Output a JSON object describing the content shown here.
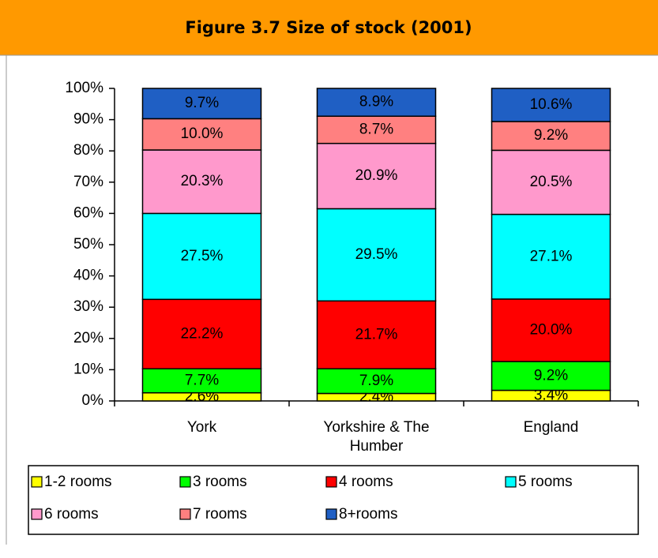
{
  "chart_data": {
    "type": "stacked_bar",
    "title": "Figure 3.7 Size of stock (2001)",
    "categories": [
      "York",
      "Yorkshire & The Humber",
      "England"
    ],
    "series": [
      {
        "name": "1-2 rooms",
        "color": "#ffff00",
        "values": [
          2.6,
          2.4,
          3.4
        ],
        "value_labels": [
          "2.6%",
          "2.4%",
          "3.4%"
        ]
      },
      {
        "name": "3 rooms",
        "color": "#00ff00",
        "values": [
          7.7,
          7.9,
          9.2
        ],
        "value_labels": [
          "7.7%",
          "7.9%",
          "9.2%"
        ]
      },
      {
        "name": "4 rooms",
        "color": "#ff0000",
        "values": [
          22.2,
          21.7,
          20.0
        ],
        "value_labels": [
          "22.2%",
          "21.7%",
          "20.0%"
        ]
      },
      {
        "name": "5 rooms",
        "color": "#00ffff",
        "values": [
          27.5,
          29.5,
          27.1
        ],
        "value_labels": [
          "27.5%",
          "29.5%",
          "27.1%"
        ]
      },
      {
        "name": "6 rooms",
        "color": "#ff99cc",
        "values": [
          20.3,
          20.9,
          20.5
        ],
        "value_labels": [
          "20.3%",
          "20.9%",
          "20.5%"
        ]
      },
      {
        "name": "7 rooms",
        "color": "#ff8080",
        "values": [
          10.0,
          8.7,
          9.2
        ],
        "value_labels": [
          "10.0%",
          "8.7%",
          "9.2%"
        ]
      },
      {
        "name": "8+rooms",
        "color": "#1f5fc4",
        "values": [
          9.7,
          8.9,
          10.6
        ],
        "value_labels": [
          "9.7%",
          "8.9%",
          "10.6%"
        ]
      }
    ],
    "ylim": [
      0,
      100
    ],
    "yticks": [
      {
        "value": 0,
        "label": "0%"
      },
      {
        "value": 10,
        "label": "10%"
      },
      {
        "value": 20,
        "label": "20%"
      },
      {
        "value": 30,
        "label": "30%"
      },
      {
        "value": 40,
        "label": "40%"
      },
      {
        "value": 50,
        "label": "50%"
      },
      {
        "value": 60,
        "label": "60%"
      },
      {
        "value": 70,
        "label": "70%"
      },
      {
        "value": 80,
        "label": "80%"
      },
      {
        "value": 90,
        "label": "90%"
      },
      {
        "value": 100,
        "label": "100%"
      }
    ],
    "legend": "bottom"
  }
}
